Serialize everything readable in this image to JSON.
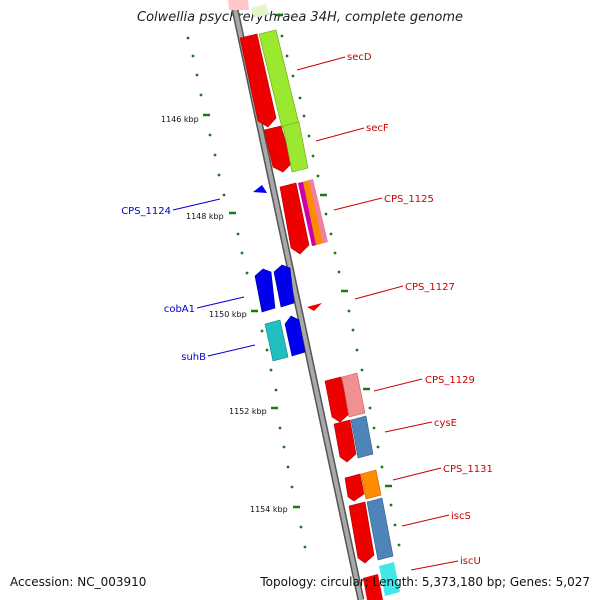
{
  "title": "Colwellia psychrerythraea 34H, complete genome",
  "footer": {
    "accession": "Accession: NC_003910",
    "topology": "Topology: circular; Length: 5,373,180 bp; Genes: 5,027"
  },
  "colors": {
    "backbone": "#888888",
    "forward_label": "#cc0000",
    "reverse_label": "#0000cc",
    "tick": "#1a7a1a",
    "cds": "#ff0000",
    "rna": "#0000ee"
  },
  "scale_ticks": [
    "1146 kbp",
    "1148 kbp",
    "1150 kbp",
    "1152 kbp",
    "1154 kbp"
  ],
  "forward_genes": [
    "secD",
    "secF",
    "CPS_1125",
    "CPS_1127",
    "CPS_1129",
    "cysE",
    "CPS_1131",
    "iscS",
    "iscU"
  ],
  "reverse_genes": [
    "CPS_1124",
    "cobA1",
    "suhB"
  ]
}
